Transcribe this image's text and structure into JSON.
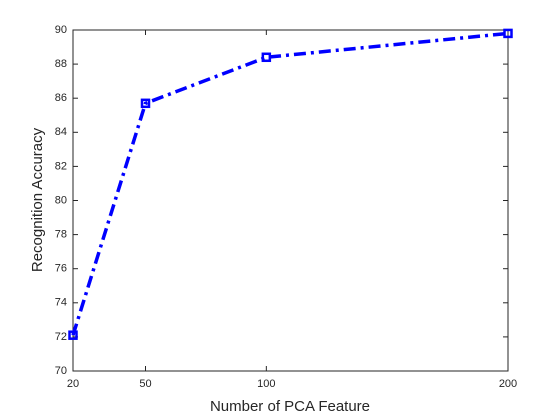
{
  "chart_data": {
    "type": "line",
    "x_label": "Number of PCA Feature",
    "y_label": "Recognition Accuracy",
    "x": [
      20,
      50,
      100,
      200
    ],
    "values": [
      72.1,
      85.7,
      88.4,
      89.8
    ],
    "color": "#0000ff",
    "line_style": "dash-dot",
    "marker": "square",
    "xlim": [
      20,
      200
    ],
    "xticks": [
      20,
      50,
      100,
      200
    ],
    "ylim": [
      70,
      90
    ],
    "yticks": [
      70,
      72,
      74,
      76,
      78,
      80,
      82,
      84,
      86,
      88,
      90
    ]
  }
}
